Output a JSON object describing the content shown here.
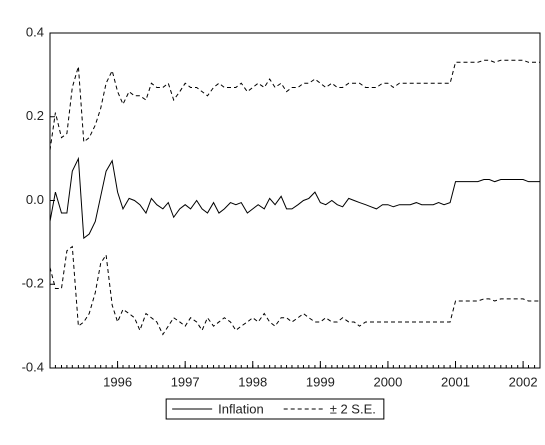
{
  "chart_data": {
    "type": "line",
    "x": [
      1995,
      1995.08,
      1995.17,
      1995.25,
      1995.33,
      1995.42,
      1995.5,
      1995.58,
      1995.67,
      1995.75,
      1995.83,
      1995.92,
      1996,
      1996.08,
      1996.17,
      1996.25,
      1996.33,
      1996.42,
      1996.5,
      1996.58,
      1996.67,
      1996.75,
      1996.83,
      1996.92,
      1997,
      1997.08,
      1997.17,
      1997.25,
      1997.33,
      1997.42,
      1997.5,
      1997.58,
      1997.67,
      1997.75,
      1997.83,
      1997.92,
      1998,
      1998.08,
      1998.17,
      1998.25,
      1998.33,
      1998.42,
      1998.5,
      1998.58,
      1998.67,
      1998.75,
      1998.83,
      1998.92,
      1999,
      1999.08,
      1999.17,
      1999.25,
      1999.33,
      1999.42,
      1999.5,
      1999.58,
      1999.67,
      1999.75,
      1999.83,
      1999.92,
      2000,
      2000.08,
      2000.17,
      2000.25,
      2000.33,
      2000.42,
      2000.5,
      2000.58,
      2000.67,
      2000.75,
      2000.83,
      2000.92,
      2001,
      2001.08,
      2001.17,
      2001.25,
      2001.33,
      2001.42,
      2001.5,
      2001.58,
      2001.67,
      2001.75,
      2001.83,
      2001.92,
      2002,
      2002.08,
      2002.17,
      2002.25
    ],
    "series": [
      {
        "name": "Inflation",
        "color": "#000000",
        "dashed": false,
        "values": [
          -0.05,
          0.02,
          -0.03,
          -0.03,
          0.07,
          0.1,
          -0.09,
          -0.08,
          -0.05,
          0.01,
          0.07,
          0.095,
          0.02,
          -0.02,
          0.005,
          0.0,
          -0.01,
          -0.03,
          0.005,
          -0.01,
          -0.02,
          -0.005,
          -0.04,
          -0.02,
          -0.01,
          -0.02,
          0.0,
          -0.02,
          -0.03,
          -0.005,
          -0.03,
          -0.02,
          -0.005,
          -0.01,
          -0.005,
          -0.03,
          -0.02,
          -0.01,
          -0.02,
          0.005,
          -0.01,
          0.01,
          -0.02,
          -0.02,
          -0.01,
          0.0,
          0.005,
          0.02,
          -0.005,
          -0.01,
          0.0,
          -0.01,
          -0.015,
          0.005,
          0.0,
          -0.005,
          -0.01,
          -0.015,
          -0.02,
          -0.01,
          -0.01,
          -0.015,
          -0.01,
          -0.01,
          -0.01,
          -0.005,
          -0.01,
          -0.01,
          -0.01,
          -0.005,
          -0.01,
          -0.005,
          0.045,
          0.045,
          0.045,
          0.045,
          0.045,
          0.05,
          0.05,
          0.045,
          0.05,
          0.05,
          0.05,
          0.05,
          0.05,
          0.045,
          0.045,
          0.045
        ]
      },
      {
        "name": "± 2 S.E.",
        "color": "#000000",
        "dashed": true,
        "values": [
          0.12,
          0.21,
          0.15,
          0.16,
          0.27,
          0.32,
          0.14,
          0.15,
          0.18,
          0.22,
          0.28,
          0.31,
          0.26,
          0.23,
          0.26,
          0.25,
          0.25,
          0.24,
          0.28,
          0.27,
          0.27,
          0.28,
          0.24,
          0.26,
          0.28,
          0.27,
          0.27,
          0.26,
          0.25,
          0.27,
          0.28,
          0.27,
          0.27,
          0.27,
          0.28,
          0.26,
          0.27,
          0.28,
          0.27,
          0.29,
          0.27,
          0.28,
          0.26,
          0.27,
          0.27,
          0.28,
          0.28,
          0.29,
          0.28,
          0.27,
          0.28,
          0.27,
          0.27,
          0.28,
          0.28,
          0.28,
          0.27,
          0.27,
          0.27,
          0.28,
          0.28,
          0.27,
          0.28,
          0.28,
          0.28,
          0.28,
          0.28,
          0.28,
          0.28,
          0.28,
          0.28,
          0.28,
          0.33,
          0.33,
          0.33,
          0.33,
          0.33,
          0.335,
          0.335,
          0.33,
          0.335,
          0.335,
          0.335,
          0.335,
          0.335,
          0.33,
          0.33,
          0.33
        ]
      },
      {
        "color": "#000000",
        "dashed": true,
        "values": [
          -0.16,
          -0.21,
          -0.21,
          -0.12,
          -0.11,
          -0.3,
          -0.29,
          -0.27,
          -0.22,
          -0.15,
          -0.13,
          -0.25,
          -0.29,
          -0.26,
          -0.27,
          -0.28,
          -0.31,
          -0.27,
          -0.28,
          -0.29,
          -0.32,
          -0.3,
          -0.28,
          -0.29,
          -0.3,
          -0.28,
          -0.29,
          -0.31,
          -0.28,
          -0.3,
          -0.29,
          -0.28,
          -0.29,
          -0.31,
          -0.3,
          -0.29,
          -0.28,
          -0.29,
          -0.27,
          -0.29,
          -0.3,
          -0.28,
          -0.28,
          -0.29,
          -0.28,
          -0.27,
          -0.28,
          -0.29,
          -0.29,
          -0.28,
          -0.29,
          -0.29,
          -0.28,
          -0.29,
          -0.29,
          -0.3,
          -0.29,
          -0.29,
          -0.29,
          -0.29,
          -0.29,
          -0.29,
          -0.29,
          -0.29,
          -0.29,
          -0.29,
          -0.29,
          -0.29,
          -0.29,
          -0.29,
          -0.29,
          -0.29,
          -0.24,
          -0.24,
          -0.24,
          -0.24,
          -0.24,
          -0.235,
          -0.235,
          -0.24,
          -0.235,
          -0.235,
          -0.235,
          -0.235,
          -0.235,
          -0.24,
          -0.24,
          -0.24
        ]
      }
    ],
    "xlim": [
      1995,
      2002.25
    ],
    "xticks": [
      1996,
      1997,
      1998,
      1999,
      2000,
      2001,
      2002
    ],
    "ylim": [
      -0.4,
      0.4
    ],
    "yticks": [
      0.4,
      0.2,
      {
        "value": 0,
        "label": "0.0"
      },
      -0.2,
      -0.4
    ],
    "grid": false,
    "legend": "bottom"
  }
}
